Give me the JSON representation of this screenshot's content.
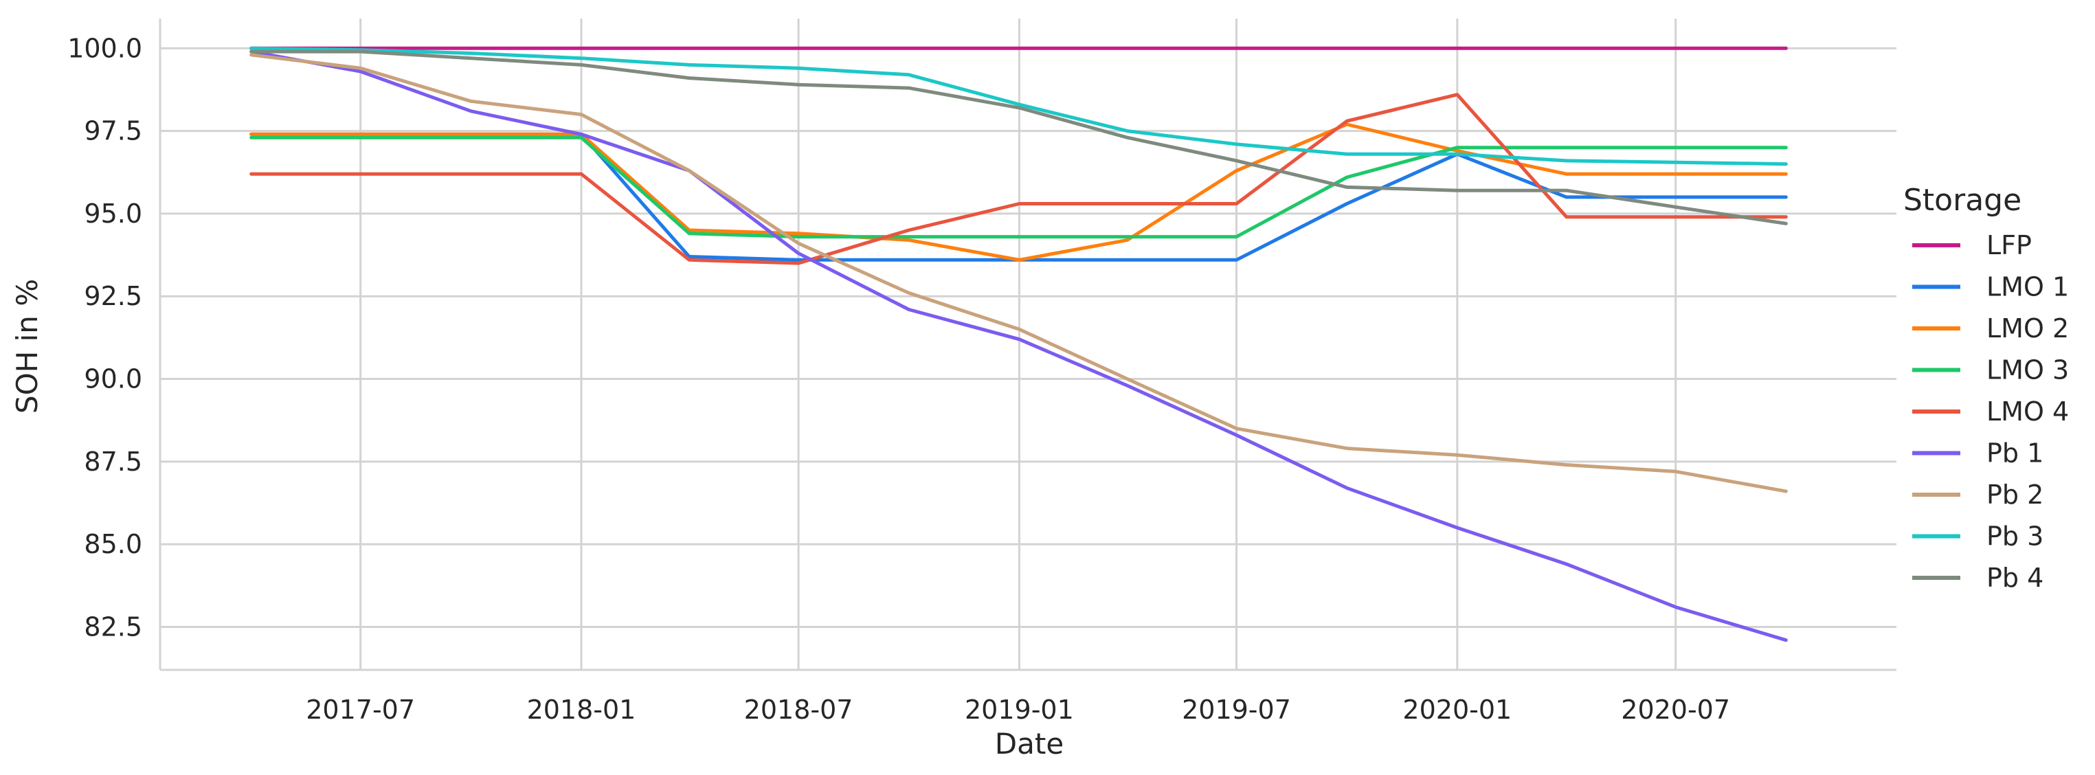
{
  "chart_data": {
    "type": "line",
    "title": "",
    "xlabel": "Date",
    "ylabel": "SOH in %",
    "x_tick_labels": [
      "2017-07",
      "2018-01",
      "2018-07",
      "2019-01",
      "2019-07",
      "2020-01",
      "2020-07"
    ],
    "y_tick_labels": [
      "100.0",
      "97.5",
      "95.0",
      "92.5",
      "90.0",
      "87.5",
      "85.0",
      "82.5"
    ],
    "y_ticks": [
      100.0,
      97.5,
      95.0,
      92.5,
      90.0,
      87.5,
      85.0,
      82.5
    ],
    "xlim": [
      "2017-01-15",
      "2021-01-01"
    ],
    "ylim": [
      81.2,
      100.9
    ],
    "grid": true,
    "legend": {
      "title": "Storage",
      "placement": "right"
    },
    "series": [
      {
        "name": "LFP",
        "color": "#c51b8a",
        "points": [
          [
            "2017-04-01",
            100.0
          ],
          [
            "2020-10-01",
            100.0
          ]
        ]
      },
      {
        "name": "LMO 1",
        "color": "#1f7ae8",
        "points": [
          [
            "2017-04-01",
            97.4
          ],
          [
            "2018-01-01",
            97.4
          ],
          [
            "2018-04-01",
            93.7
          ],
          [
            "2018-07-01",
            93.6
          ],
          [
            "2019-01-01",
            93.6
          ],
          [
            "2019-07-01",
            93.6
          ],
          [
            "2019-10-01",
            95.3
          ],
          [
            "2020-01-01",
            96.8
          ],
          [
            "2020-04-01",
            95.5
          ],
          [
            "2020-10-01",
            95.5
          ]
        ]
      },
      {
        "name": "LMO 2",
        "color": "#ff7f0e",
        "points": [
          [
            "2017-04-01",
            97.4
          ],
          [
            "2018-01-01",
            97.4
          ],
          [
            "2018-04-01",
            94.5
          ],
          [
            "2018-07-01",
            94.4
          ],
          [
            "2018-10-01",
            94.2
          ],
          [
            "2019-01-01",
            93.6
          ],
          [
            "2019-04-01",
            94.2
          ],
          [
            "2019-07-01",
            96.3
          ],
          [
            "2019-10-01",
            97.7
          ],
          [
            "2020-01-01",
            96.9
          ],
          [
            "2020-04-01",
            96.2
          ],
          [
            "2020-10-01",
            96.2
          ]
        ]
      },
      {
        "name": "LMO 3",
        "color": "#1ec868",
        "points": [
          [
            "2017-04-01",
            97.3
          ],
          [
            "2018-01-01",
            97.3
          ],
          [
            "2018-04-01",
            94.4
          ],
          [
            "2018-07-01",
            94.3
          ],
          [
            "2019-01-01",
            94.3
          ],
          [
            "2019-07-01",
            94.3
          ],
          [
            "2019-10-01",
            96.1
          ],
          [
            "2020-01-01",
            97.0
          ],
          [
            "2020-04-01",
            97.0
          ],
          [
            "2020-10-01",
            97.0
          ]
        ]
      },
      {
        "name": "LMO 4",
        "color": "#e8553f",
        "points": [
          [
            "2017-04-01",
            96.2
          ],
          [
            "2018-01-01",
            96.2
          ],
          [
            "2018-04-01",
            93.6
          ],
          [
            "2018-07-01",
            93.5
          ],
          [
            "2018-10-01",
            94.5
          ],
          [
            "2019-01-01",
            95.3
          ],
          [
            "2019-07-01",
            95.3
          ],
          [
            "2019-10-01",
            97.8
          ],
          [
            "2020-01-01",
            98.6
          ],
          [
            "2020-04-01",
            94.9
          ],
          [
            "2020-10-01",
            94.9
          ]
        ]
      },
      {
        "name": "Pb 1",
        "color": "#7b5cf0",
        "points": [
          [
            "2017-04-01",
            99.9
          ],
          [
            "2017-07-01",
            99.3
          ],
          [
            "2017-10-01",
            98.1
          ],
          [
            "2018-01-01",
            97.4
          ],
          [
            "2018-04-01",
            96.3
          ],
          [
            "2018-07-01",
            93.8
          ],
          [
            "2018-10-01",
            92.1
          ],
          [
            "2019-01-01",
            91.2
          ],
          [
            "2019-04-01",
            89.8
          ],
          [
            "2019-07-01",
            88.3
          ],
          [
            "2019-10-01",
            86.7
          ],
          [
            "2020-01-01",
            85.5
          ],
          [
            "2020-04-01",
            84.4
          ],
          [
            "2020-07-01",
            83.1
          ],
          [
            "2020-10-01",
            82.1
          ]
        ]
      },
      {
        "name": "Pb 2",
        "color": "#c9a27c",
        "points": [
          [
            "2017-04-01",
            99.8
          ],
          [
            "2017-07-01",
            99.4
          ],
          [
            "2017-10-01",
            98.4
          ],
          [
            "2018-01-01",
            98.0
          ],
          [
            "2018-04-01",
            96.3
          ],
          [
            "2018-07-01",
            94.1
          ],
          [
            "2018-10-01",
            92.6
          ],
          [
            "2019-01-01",
            91.5
          ],
          [
            "2019-04-01",
            90.0
          ],
          [
            "2019-07-01",
            88.5
          ],
          [
            "2019-10-01",
            87.9
          ],
          [
            "2020-01-01",
            87.7
          ],
          [
            "2020-04-01",
            87.4
          ],
          [
            "2020-07-01",
            87.2
          ],
          [
            "2020-10-01",
            86.6
          ]
        ]
      },
      {
        "name": "Pb 3",
        "color": "#1cc7c7",
        "points": [
          [
            "2017-04-01",
            100.0
          ],
          [
            "2017-07-01",
            99.95
          ],
          [
            "2017-10-01",
            99.85
          ],
          [
            "2018-01-01",
            99.7
          ],
          [
            "2018-04-01",
            99.5
          ],
          [
            "2018-07-01",
            99.4
          ],
          [
            "2018-10-01",
            99.2
          ],
          [
            "2019-01-01",
            98.3
          ],
          [
            "2019-04-01",
            97.5
          ],
          [
            "2019-07-01",
            97.1
          ],
          [
            "2019-10-01",
            96.8
          ],
          [
            "2020-01-01",
            96.8
          ],
          [
            "2020-04-01",
            96.6
          ],
          [
            "2020-10-01",
            96.5
          ]
        ]
      },
      {
        "name": "Pb 4",
        "color": "#7f8a7f",
        "points": [
          [
            "2017-04-01",
            99.9
          ],
          [
            "2017-07-01",
            99.9
          ],
          [
            "2017-10-01",
            99.7
          ],
          [
            "2018-01-01",
            99.5
          ],
          [
            "2018-04-01",
            99.1
          ],
          [
            "2018-07-01",
            98.9
          ],
          [
            "2018-10-01",
            98.8
          ],
          [
            "2019-01-01",
            98.2
          ],
          [
            "2019-04-01",
            97.3
          ],
          [
            "2019-07-01",
            96.6
          ],
          [
            "2019-10-01",
            95.8
          ],
          [
            "2020-01-01",
            95.7
          ],
          [
            "2020-04-01",
            95.7
          ],
          [
            "2020-07-01",
            95.2
          ],
          [
            "2020-10-01",
            94.7
          ]
        ]
      }
    ]
  }
}
